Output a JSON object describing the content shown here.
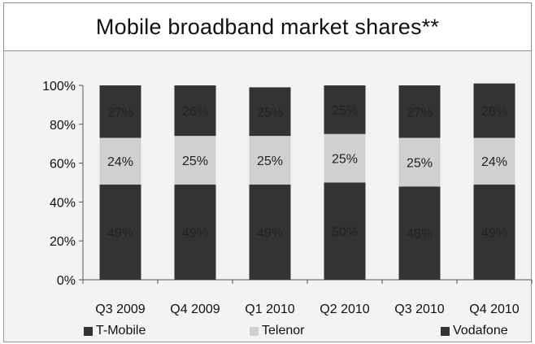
{
  "chart_data": {
    "type": "bar",
    "stacked": true,
    "title": "Mobile broadband market shares**",
    "categories": [
      "Q3 2009",
      "Q4 2009",
      "Q1 2010",
      "Q2 2010",
      "Q3 2010",
      "Q4 2010"
    ],
    "series": [
      {
        "name": "T-Mobile",
        "values": [
          49,
          49,
          49,
          50,
          48,
          49
        ],
        "labels": [
          "49%",
          "49%",
          "49%",
          "50%",
          "48%",
          "49%"
        ],
        "color": "#333333",
        "label_color": "#222222"
      },
      {
        "name": "Telenor",
        "values": [
          24,
          25,
          25,
          25,
          25,
          24
        ],
        "labels": [
          "24%",
          "25%",
          "25%",
          "25%",
          "25%",
          "24%"
        ],
        "color": "#d0d0d0",
        "label_color": "#222222"
      },
      {
        "name": "Vodafone",
        "values": [
          27,
          26,
          25,
          25,
          27,
          28
        ],
        "labels": [
          "27%",
          "26%",
          "25%",
          "25%",
          "27%",
          "28%"
        ],
        "color": "#333333",
        "label_color": "#222222"
      }
    ],
    "ylim": [
      0,
      100
    ],
    "yticks": [
      0,
      20,
      40,
      60,
      80,
      100
    ],
    "ytick_labels": [
      "0%",
      "20%",
      "40%",
      "60%",
      "80%",
      "100%"
    ],
    "grid": false,
    "legend_position": "bottom"
  }
}
